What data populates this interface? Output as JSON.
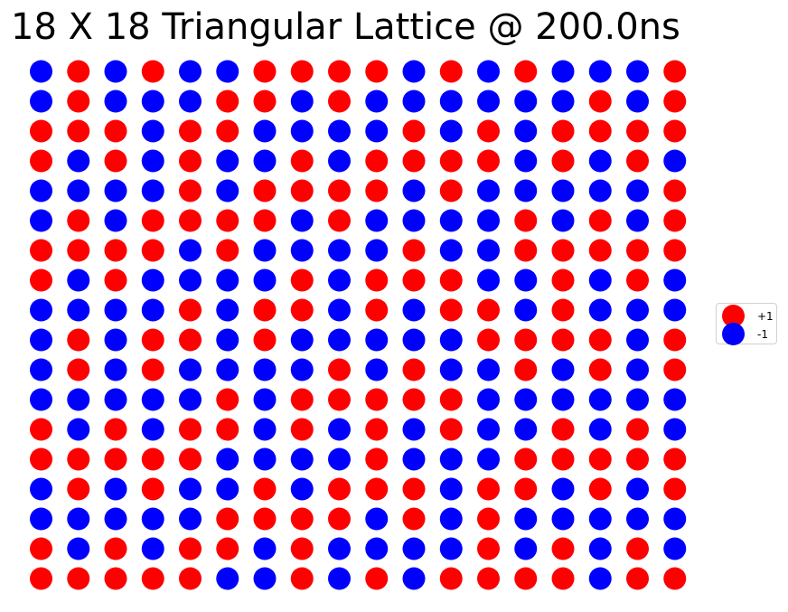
{
  "chart_data": {
    "type": "scatter",
    "title": "18 X 18 Triangular Lattice @ 200.0ns",
    "xlabel": "",
    "ylabel": "",
    "axes_visible": false,
    "grid": false,
    "legend_position": "center-right",
    "columns": 18,
    "rows": 18,
    "colors": {
      "+1": "#ff0000",
      "-1": "#0000ff"
    },
    "series": [
      {
        "name": "+1",
        "value": 1,
        "color": "#ff0000"
      },
      {
        "name": "-1",
        "value": -1,
        "color": "#0000ff"
      }
    ],
    "spins": [
      [
        -1,
        1,
        -1,
        1,
        -1,
        -1,
        1,
        1,
        1,
        1,
        -1,
        1,
        -1,
        1,
        -1,
        -1,
        -1,
        1
      ],
      [
        -1,
        1,
        -1,
        -1,
        -1,
        1,
        1,
        -1,
        1,
        -1,
        -1,
        -1,
        -1,
        -1,
        -1,
        1,
        -1,
        1
      ],
      [
        1,
        1,
        1,
        -1,
        1,
        1,
        -1,
        -1,
        -1,
        -1,
        1,
        -1,
        1,
        -1,
        1,
        1,
        1,
        1
      ],
      [
        1,
        -1,
        1,
        -1,
        1,
        -1,
        -1,
        1,
        -1,
        1,
        1,
        1,
        1,
        -1,
        1,
        -1,
        1,
        -1
      ],
      [
        -1,
        -1,
        -1,
        -1,
        1,
        -1,
        1,
        1,
        1,
        1,
        -1,
        1,
        -1,
        -1,
        -1,
        -1,
        -1,
        1
      ],
      [
        -1,
        1,
        -1,
        1,
        1,
        1,
        1,
        -1,
        1,
        -1,
        -1,
        -1,
        -1,
        1,
        -1,
        1,
        -1,
        1
      ],
      [
        1,
        1,
        1,
        1,
        -1,
        1,
        -1,
        -1,
        -1,
        -1,
        1,
        -1,
        -1,
        1,
        1,
        1,
        1,
        1
      ],
      [
        1,
        -1,
        1,
        -1,
        -1,
        -1,
        -1,
        1,
        -1,
        1,
        1,
        1,
        -1,
        -1,
        1,
        -1,
        1,
        -1
      ],
      [
        -1,
        -1,
        -1,
        -1,
        1,
        -1,
        1,
        1,
        -1,
        1,
        -1,
        1,
        1,
        -1,
        1,
        -1,
        -1,
        -1
      ],
      [
        -1,
        1,
        -1,
        1,
        1,
        -1,
        1,
        -1,
        -1,
        -1,
        -1,
        -1,
        1,
        1,
        1,
        1,
        -1,
        1
      ],
      [
        -1,
        1,
        -1,
        1,
        -1,
        -1,
        -1,
        -1,
        1,
        -1,
        1,
        -1,
        -1,
        1,
        -1,
        1,
        -1,
        1
      ],
      [
        -1,
        -1,
        -1,
        -1,
        -1,
        1,
        -1,
        1,
        1,
        1,
        1,
        1,
        -1,
        -1,
        -1,
        -1,
        -1,
        -1
      ],
      [
        1,
        -1,
        1,
        -1,
        1,
        1,
        -1,
        1,
        -1,
        1,
        -1,
        1,
        -1,
        -1,
        1,
        -1,
        1,
        -1
      ],
      [
        1,
        1,
        1,
        1,
        1,
        -1,
        -1,
        -1,
        -1,
        1,
        -1,
        -1,
        -1,
        1,
        1,
        1,
        1,
        1
      ],
      [
        -1,
        1,
        -1,
        1,
        -1,
        -1,
        1,
        -1,
        1,
        1,
        1,
        -1,
        1,
        1,
        -1,
        1,
        -1,
        1
      ],
      [
        -1,
        -1,
        -1,
        -1,
        -1,
        1,
        1,
        1,
        1,
        -1,
        1,
        -1,
        1,
        -1,
        -1,
        -1,
        -1,
        -1
      ],
      [
        1,
        -1,
        1,
        -1,
        1,
        1,
        -1,
        1,
        -1,
        -1,
        -1,
        -1,
        1,
        -1,
        1,
        -1,
        1,
        -1
      ],
      [
        1,
        1,
        1,
        1,
        1,
        -1,
        -1,
        1,
        -1,
        1,
        -1,
        1,
        1,
        1,
        1,
        -1,
        1,
        1
      ]
    ]
  }
}
